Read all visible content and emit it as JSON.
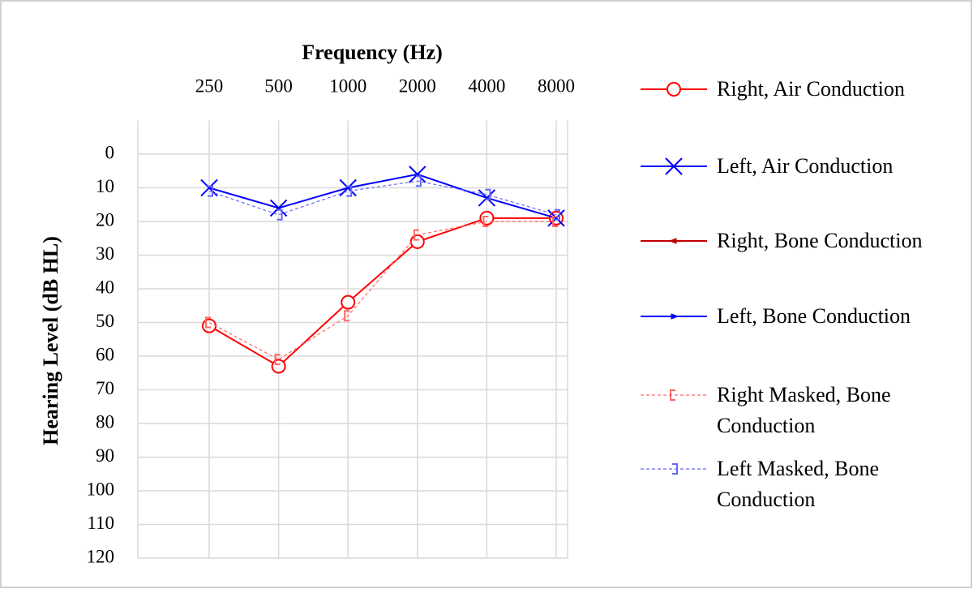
{
  "chart_data": {
    "type": "line",
    "title": "Frequency  (Hz)",
    "y_label": "Hearing Level (dB HL)",
    "categories": [
      "250",
      "500",
      "1000",
      "2000",
      "4000",
      "8000"
    ],
    "ylim": [
      -10,
      120
    ],
    "y_inverted": true,
    "yticks": [
      0,
      10,
      20,
      30,
      40,
      50,
      60,
      70,
      80,
      90,
      100,
      110,
      120
    ],
    "grid": true,
    "series": [
      {
        "name": "Right, Air Conduction",
        "color": "#ff0000",
        "marker": "circle",
        "dash": false,
        "values": [
          51,
          63,
          44,
          26,
          19,
          19
        ]
      },
      {
        "name": "Left, Air Conduction",
        "color": "#0000ff",
        "marker": "x",
        "dash": false,
        "values": [
          10,
          16,
          10,
          6,
          13,
          19
        ]
      },
      {
        "name": "Right, Bone Conduction",
        "color": "#c00000",
        "marker": "arrow-left",
        "dash": false,
        "values": [
          null,
          null,
          null,
          null,
          null,
          null
        ]
      },
      {
        "name": "Left, Bone Conduction",
        "color": "#0000ff",
        "marker": "arrow-right",
        "dash": false,
        "values": [
          null,
          null,
          null,
          null,
          null,
          null
        ]
      },
      {
        "name": "Right Masked, Bone Conduction",
        "color": "#ff6666",
        "marker": "bracket-left",
        "dash": true,
        "values": [
          50,
          61,
          48,
          24,
          20,
          20
        ]
      },
      {
        "name": "Left Masked, Bone Conduction",
        "color": "#6666ff",
        "marker": "bracket-right",
        "dash": true,
        "values": [
          11,
          18,
          11,
          8,
          12,
          18
        ]
      }
    ]
  }
}
